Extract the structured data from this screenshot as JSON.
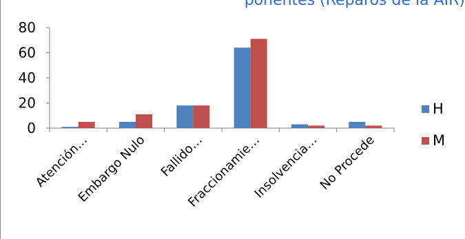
{
  "chart_data": {
    "type": "bar",
    "title": "ponentes (Reparos de la AIR)",
    "categories": [
      "Atención…",
      "Embargo Nulo",
      "Fallido…",
      "Fraccionamie…",
      "Insolvencia…",
      "No Procede"
    ],
    "series": [
      {
        "name": "H",
        "color": "#4f81bd",
        "values": [
          1,
          5,
          18,
          64,
          3,
          5
        ]
      },
      {
        "name": "M",
        "color": "#c0504d",
        "values": [
          5,
          11,
          18,
          71,
          2,
          2
        ]
      }
    ],
    "yticks": [
      0,
      20,
      40,
      60,
      80
    ],
    "ylim": [
      0,
      80
    ],
    "grid": false,
    "legend": "right"
  }
}
